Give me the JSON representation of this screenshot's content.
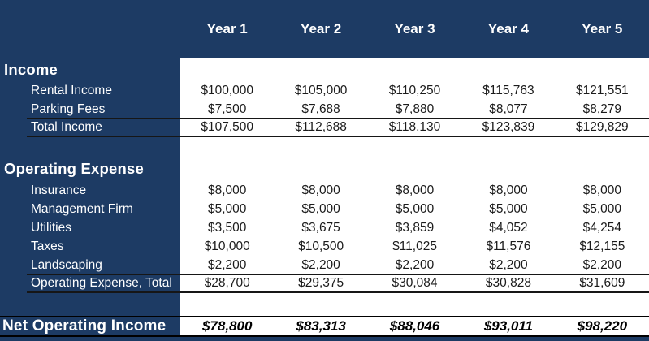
{
  "colors": {
    "navy": "#1d3b64",
    "line": "#161616",
    "text_dark": "#1b1b1b",
    "white": "#ffffff"
  },
  "table": {
    "year_headers": [
      "Year 1",
      "Year 2",
      "Year 3",
      "Year 4",
      "Year 5"
    ],
    "sections": [
      {
        "title": "Income",
        "rows": [
          {
            "label": "Rental Income",
            "total": false,
            "values": [
              "$100,000",
              "$105,000",
              "$110,250",
              "$115,763",
              "$121,551"
            ]
          },
          {
            "label": "Parking Fees",
            "total": false,
            "values": [
              "$7,500",
              "$7,688",
              "$7,880",
              "$8,077",
              "$8,279"
            ]
          },
          {
            "label": "Total Income",
            "total": true,
            "values": [
              "$107,500",
              "$112,688",
              "$118,130",
              "$123,839",
              "$129,829"
            ]
          }
        ]
      },
      {
        "title": "Operating Expense",
        "rows": [
          {
            "label": "Insurance",
            "total": false,
            "values": [
              "$8,000",
              "$8,000",
              "$8,000",
              "$8,000",
              "$8,000"
            ]
          },
          {
            "label": "Management Firm",
            "total": false,
            "values": [
              "$5,000",
              "$5,000",
              "$5,000",
              "$5,000",
              "$5,000"
            ]
          },
          {
            "label": "Utilities",
            "total": false,
            "values": [
              "$3,500",
              "$3,675",
              "$3,859",
              "$4,052",
              "$4,254"
            ]
          },
          {
            "label": "Taxes",
            "total": false,
            "values": [
              "$10,000",
              "$10,500",
              "$11,025",
              "$11,576",
              "$12,155"
            ]
          },
          {
            "label": "Landscaping",
            "total": false,
            "values": [
              "$2,200",
              "$2,200",
              "$2,200",
              "$2,200",
              "$2,200"
            ]
          },
          {
            "label": "Operating Expense, Total",
            "total": true,
            "values": [
              "$28,700",
              "$29,375",
              "$30,084",
              "$30,828",
              "$31,609"
            ]
          }
        ]
      }
    ],
    "footer": {
      "label": "Net Operating Income",
      "values": [
        "$78,800",
        "$83,313",
        "$88,046",
        "$93,011",
        "$98,220"
      ]
    }
  }
}
